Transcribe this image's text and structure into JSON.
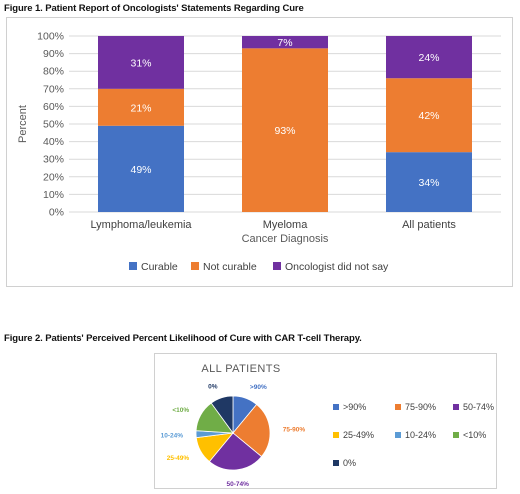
{
  "figure1": {
    "title": "Figure 1. Patient Report of Oncologists' Statements Regarding Cure"
  },
  "figure2": {
    "title": "Figure 2. Patients' Perceived Percent Likelihood of Cure with CAR T-cell Therapy."
  },
  "chart_data": [
    {
      "type": "bar",
      "stacked": true,
      "categories": [
        "Lymphoma/leukemia",
        "Myeloma",
        "All patients"
      ],
      "series": [
        {
          "name": "Curable",
          "values": [
            49,
            0,
            34
          ],
          "labels": [
            "49%",
            "",
            "34%"
          ],
          "color": "#4472C4"
        },
        {
          "name": "Not curable",
          "values": [
            21,
            93,
            42
          ],
          "labels": [
            "21%",
            "93%",
            "42%"
          ],
          "color": "#ED7D31"
        },
        {
          "name": "Oncologist did not say",
          "values": [
            31,
            7,
            24
          ],
          "labels": [
            "31%",
            "7%",
            "24%"
          ],
          "color": "#7030A0"
        }
      ],
      "xlabel": "Cancer Diagnosis",
      "ylabel": "Percent",
      "ylim": [
        0,
        100
      ],
      "yticks": [
        "0%",
        "10%",
        "20%",
        "30%",
        "40%",
        "50%",
        "60%",
        "70%",
        "80%",
        "90%",
        "100%"
      ],
      "grid": true,
      "legend_position": "bottom"
    },
    {
      "type": "pie",
      "title": "ALL PATIENTS",
      "slices": [
        {
          "name": ">90%",
          "value": 11,
          "color": "#4472C4"
        },
        {
          "name": "75-90%",
          "value": 25,
          "color": "#ED7D31"
        },
        {
          "name": "50-74%",
          "value": 25,
          "color": "#7030A0"
        },
        {
          "name": "25-49%",
          "value": 12,
          "color": "#FFC000"
        },
        {
          "name": "10-24%",
          "value": 3,
          "color": "#5B9BD5"
        },
        {
          "name": "<10%",
          "value": 14,
          "color": "#70AD47"
        },
        {
          "name": "0%",
          "value": 10,
          "color": "#1F3864"
        }
      ],
      "slice_labels": [
        ">90%",
        "75-90%",
        "50-74%",
        "25-49%",
        "10-24%",
        "<10%",
        "0%"
      ],
      "legend_position": "right"
    }
  ]
}
